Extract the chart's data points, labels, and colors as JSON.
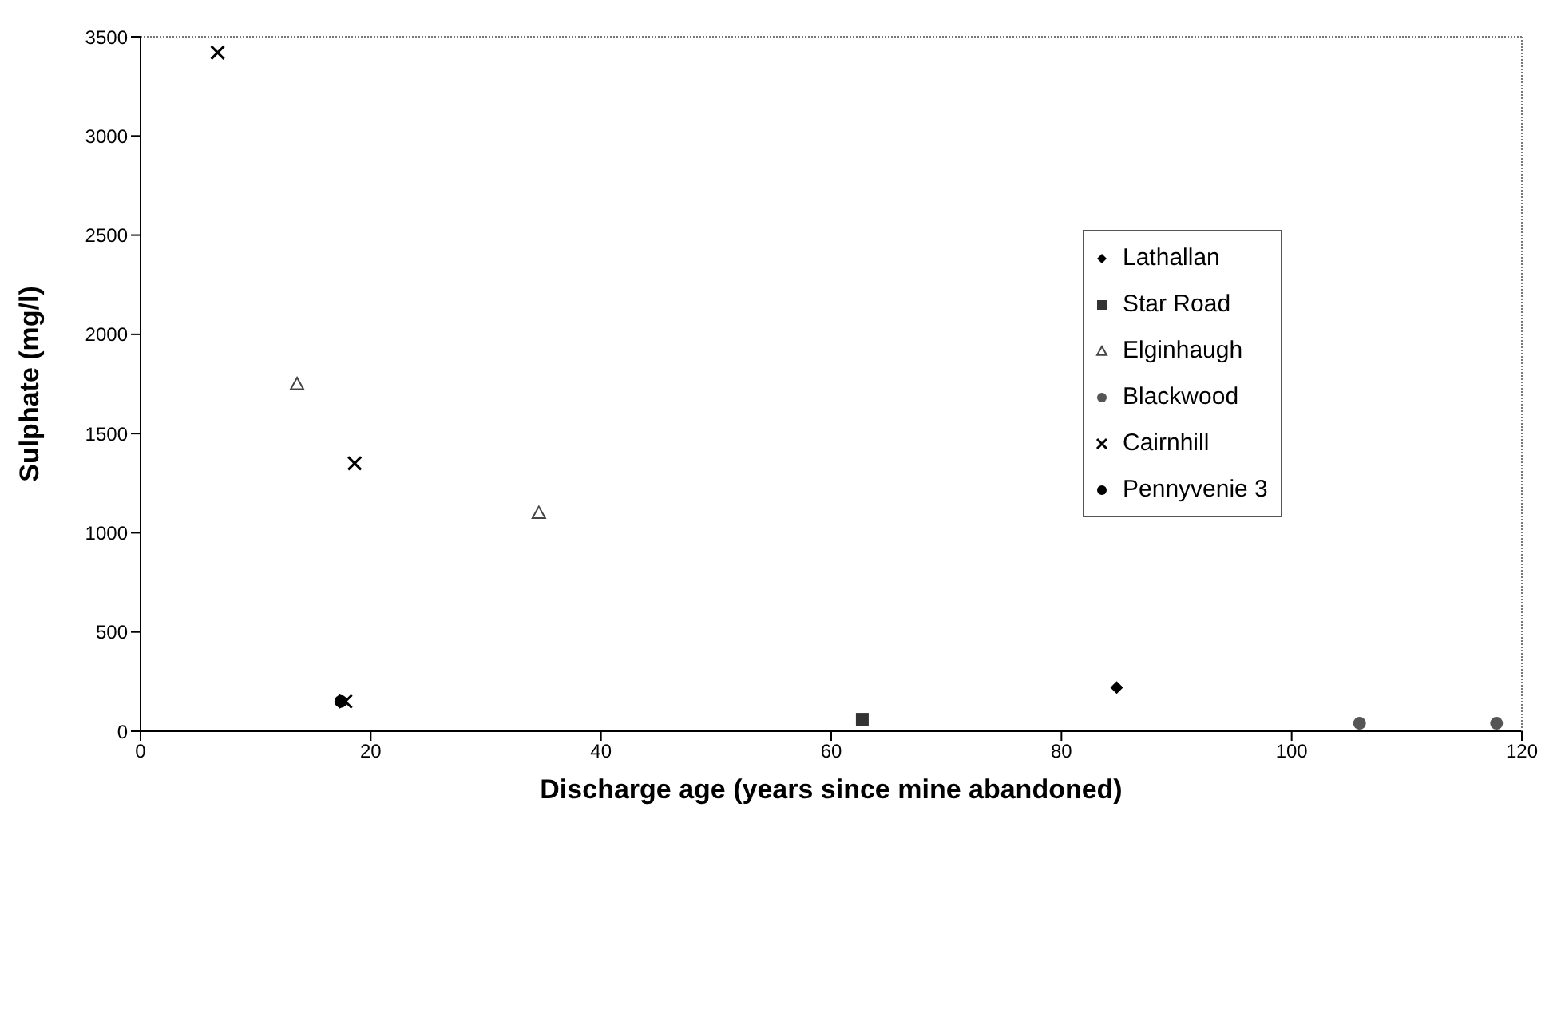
{
  "chart_data": {
    "type": "scatter",
    "xlabel": "Discharge age (years since mine abandoned)",
    "ylabel": "Sulphate (mg/l)",
    "xlim": [
      0,
      120
    ],
    "xticks": [
      0,
      20,
      40,
      60,
      80,
      100,
      120
    ],
    "ylim": [
      0,
      3500
    ],
    "yticks": [
      0,
      500,
      1000,
      1500,
      2000,
      2500,
      3000,
      3500
    ],
    "grid": false,
    "legend": "top right",
    "series": [
      {
        "name": "Lathallan",
        "color": "#000000",
        "marker": "diamond",
        "x": [
          84.8
        ],
        "values": [
          220
        ]
      },
      {
        "name": "Star Road",
        "color": "#333333",
        "marker": "square",
        "x": [
          62.7
        ],
        "values": [
          60
        ]
      },
      {
        "name": "Elginhaugh",
        "color": "#444444",
        "marker": "triangle",
        "x": [
          13.6,
          34.6
        ],
        "values": [
          1750,
          1100
        ]
      },
      {
        "name": "Blackwood",
        "color": "#555555",
        "marker": "circle",
        "x": [
          105.9,
          117.8
        ],
        "values": [
          40,
          40
        ]
      },
      {
        "name": "Cairnhill",
        "color": "#000000",
        "marker": "cross",
        "x": [
          6.7,
          18.6,
          17.8
        ],
        "values": [
          3420,
          1350,
          150
        ]
      },
      {
        "name": "Pennyvenie 3",
        "color": "#000000",
        "marker": "circle",
        "x": [
          17.4
        ],
        "values": [
          150
        ]
      }
    ]
  }
}
